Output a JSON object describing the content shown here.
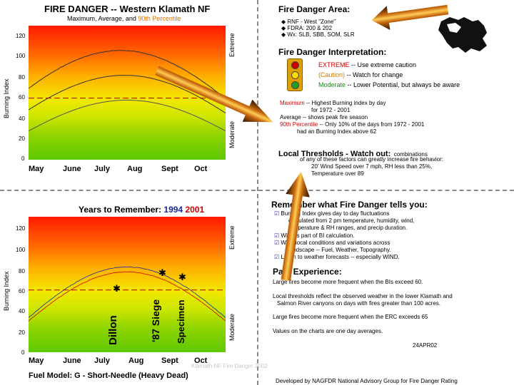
{
  "top_chart": {
    "title": "FIRE DANGER -- Western Klamath NF",
    "subtitle_pre": "Maximum, Average, and ",
    "subtitle_pct": "90th Percentile",
    "y_label": "Burning Index",
    "zone_extreme": "Extreme",
    "zone_moderate": "Moderate",
    "yticks": [
      "120",
      "100",
      "80",
      "60",
      "40",
      "20",
      "0"
    ],
    "months": [
      "May",
      "June",
      "July",
      "Aug",
      "Sept",
      "Oct"
    ]
  },
  "bottom_chart": {
    "title": "Years to Remember:",
    "year1": "1994",
    "year2": "2001",
    "y_label": "Burning Index",
    "zone_extreme": "Extreme",
    "zone_moderate": "Moderate",
    "yticks": [
      "120",
      "100",
      "80",
      "60",
      "40",
      "20",
      "0"
    ],
    "months": [
      "May",
      "June",
      "July",
      "Aug",
      "Sept",
      "Oct"
    ],
    "fire_names": [
      "Dillon",
      "'87 Siege",
      "Specimen"
    ],
    "fuel_model": "Fuel Model: G - Short-Needle (Heavy Dead)",
    "footer_gray": "Klamath NF Fire Danger 2002"
  },
  "area": {
    "title": "Fire Danger Area:",
    "bullets": [
      "RNF - West \"Zone\"",
      "FDRA: 200 & 202",
      "Wx: SLB, SBB, SOM, SLR"
    ]
  },
  "interpretation": {
    "title": "Fire Danger Interpretation:",
    "extreme_word": "EXTREME",
    "extreme_text": " -- Use extreme caution",
    "caution_word": "(Caution)",
    "caution_text": " -- Watch for change",
    "moderate_word": "Moderate",
    "moderate_text": " -- Lower Potential, but always be aware",
    "maximum_word": "Maximum",
    "maximum_text": " -- Highest Burning index by day",
    "maximum_text2": "for 1972 - 2001",
    "average_text": "Average   -- shows peak fire season",
    "pct_word": "90th Percentile",
    "pct_text": " -- Only 10% of the days from 1972 - 2001",
    "pct_text2": "had an Burning Index above 62"
  },
  "thresholds": {
    "title": "Local Thresholds - Watch out:",
    "title_tail": "combinations",
    "line1": "of any of these factors can greatly increase fire behavior:",
    "line2": "20' Wind Speed over 7 mph, RH less than 25%,",
    "line3": "Temperature over 89"
  },
  "remember": {
    "title": "Remember what Fire Danger tells you:",
    "items": [
      "Burning Index gives day to day fluctuations",
      "calculated from 2 pm temperature, humidity, wind,",
      "temperature & RH ranges, and precip duration.",
      "Wind is part of BI calculation.",
      "Wind local conditions and variations across",
      "landscape -- Fuel, Weather, Topography.",
      "Listen to weather forecasts -- especially WIND."
    ]
  },
  "past": {
    "title": "Past Experience:",
    "p1": "Large fires become more frequent when the BIs exceed 60.",
    "p2a": "Local thresholds reflect the observed weather in the lower Klamath and",
    "p2b": "Salmon River canyons on days with fires greater than 100 acres.",
    "p3": "Large fires become more frequent when the ERC exceeds 65",
    "p4": "Values on the charts are one day averages."
  },
  "date": "24APR02",
  "footer": "Developed by NAGFDR  National Advisory Group for Fire Danger Rating",
  "colors": {
    "title_red": "#cc0000",
    "year1": "#1a2a9a",
    "year2": "#cc0000",
    "threshold_line": "#b00000",
    "caution": "#cc7a00",
    "moderate": "#1a8a1a"
  }
}
